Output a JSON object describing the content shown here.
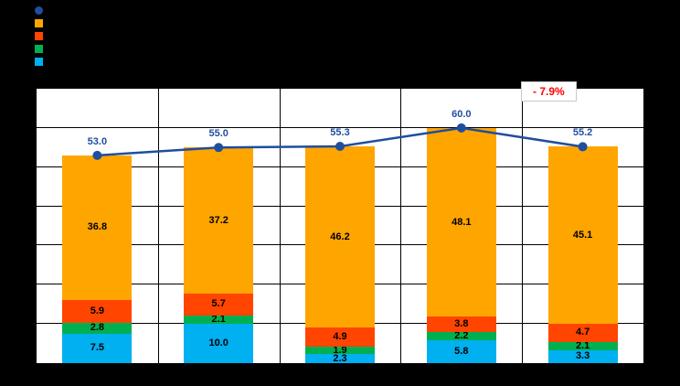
{
  "page": {
    "background": "#000000",
    "plot_background": "#ffffff",
    "grid_color": "#000000"
  },
  "legend": {
    "position": "top-left",
    "items": [
      {
        "marker": "line-circle",
        "color": "#1F4E9D",
        "label": ""
      },
      {
        "marker": "square",
        "color": "#FFA500",
        "label": ""
      },
      {
        "marker": "square",
        "color": "#FF4500",
        "label": ""
      },
      {
        "marker": "square",
        "color": "#00B050",
        "label": ""
      },
      {
        "marker": "square",
        "color": "#00B0F0",
        "label": ""
      }
    ]
  },
  "annotation": {
    "text": "- 7.9%",
    "color": "#FF0000"
  },
  "chart_data": {
    "type": "bar",
    "subtype": "stacked-columns-with-total-line",
    "title": "",
    "xlabel": "",
    "ylabel": "",
    "categories": [
      "",
      "",
      "",
      "",
      ""
    ],
    "series": [
      {
        "name": "cyan-bottom",
        "type": "bar",
        "color": "#00B0F0",
        "values": [
          7.5,
          10.0,
          2.3,
          5.8,
          3.3
        ]
      },
      {
        "name": "green",
        "type": "bar",
        "color": "#00B050",
        "values": [
          2.8,
          2.1,
          1.9,
          2.2,
          2.1
        ]
      },
      {
        "name": "orange-red",
        "type": "bar",
        "color": "#FF4500",
        "values": [
          5.9,
          5.7,
          4.9,
          3.8,
          4.7
        ]
      },
      {
        "name": "orange",
        "type": "bar",
        "color": "#FFA500",
        "values": [
          36.8,
          37.2,
          46.2,
          48.1,
          45.1
        ]
      },
      {
        "name": "total-line",
        "type": "line",
        "color": "#1F4E9D",
        "values": [
          53.0,
          55.0,
          55.3,
          60.0,
          55.2
        ]
      }
    ],
    "ylim": [
      0,
      70
    ],
    "grid_step": 10,
    "grid": true,
    "legend_position": "top-left",
    "annotations": [
      {
        "text": "- 7.9%",
        "color": "#FF0000",
        "position": "above plot, between 4th and 5th columns"
      }
    ]
  }
}
